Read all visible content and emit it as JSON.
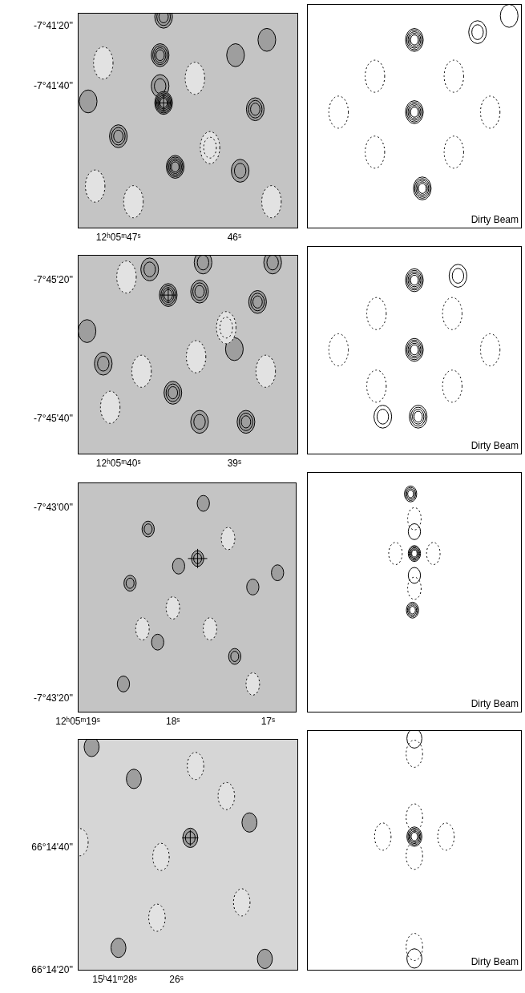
{
  "chart_data": [
    {
      "type": "contour",
      "marker": "cross",
      "xlim": [
        47.35,
        45.45
      ],
      "ylim": [
        -87.4,
        -15.6
      ],
      "xticks": [
        {
          "value": 47,
          "label": "12ʰ05ᵐ47ˢ"
        },
        {
          "value": 46,
          "label": "46ˢ"
        }
      ],
      "yticks": [
        {
          "value": -20,
          "label": "-7°41'20''"
        },
        {
          "value": -40,
          "label": "-7°41'40''"
        }
      ],
      "cross": {
        "x": 46.61,
        "y": -45.6
      },
      "contours": [
        {
          "x": 46.61,
          "y": -16.9,
          "levels": 3
        },
        {
          "x": 46.64,
          "y": -29.7,
          "levels": 4
        },
        {
          "x": 46.64,
          "y": -40.0,
          "levels": 2
        },
        {
          "x": 46.61,
          "y": -45.6,
          "levels": 6
        },
        {
          "x": 47.0,
          "y": -56.7,
          "levels": 3
        },
        {
          "x": 46.51,
          "y": -66.9,
          "levels": 5
        },
        {
          "x": 45.82,
          "y": -47.7,
          "levels": 3
        },
        {
          "x": 45.95,
          "y": -68.2,
          "levels": 2
        },
        {
          "x": 45.99,
          "y": -29.7,
          "levels": 1
        },
        {
          "x": 47.26,
          "y": -45.1,
          "levels": 1
        },
        {
          "x": 45.72,
          "y": -24.6,
          "levels": 1
        },
        {
          "x": 46.34,
          "y": -37.4,
          "levels": -1
        },
        {
          "x": 47.13,
          "y": -32.3,
          "levels": -1
        },
        {
          "x": 46.21,
          "y": -60.5,
          "levels": -2
        },
        {
          "x": 46.87,
          "y": -78.5,
          "levels": -1
        },
        {
          "x": 45.68,
          "y": -78.5,
          "levels": -1
        },
        {
          "x": 47.2,
          "y": -73.3,
          "levels": -1
        }
      ]
    },
    {
      "type": "contour",
      "tick_labels": false,
      "annotations": [
        "Dirty Beam"
      ],
      "xlim": [
        -17,
        17
      ],
      "ylim": [
        -37.2,
        34.6
      ],
      "contours": [
        {
          "x": 0,
          "y": 0,
          "levels": 5
        },
        {
          "x": 0,
          "y": 23.1,
          "levels": 5
        },
        {
          "x": 1.25,
          "y": -24.4,
          "levels": 5
        },
        {
          "x": 10,
          "y": 25.6,
          "levels": 2
        },
        {
          "x": 15,
          "y": 30.8,
          "levels": 1
        },
        {
          "x": -6.25,
          "y": 11.5,
          "levels": -1
        },
        {
          "x": 6.25,
          "y": 11.5,
          "levels": -1
        },
        {
          "x": -6.25,
          "y": -12.8,
          "levels": -1
        },
        {
          "x": 6.25,
          "y": -12.8,
          "levels": -1
        },
        {
          "x": -12,
          "y": 0,
          "levels": -1
        },
        {
          "x": 12,
          "y": 0,
          "levels": -1
        }
      ]
    },
    {
      "type": "contour",
      "marker": "cross",
      "xlim": [
        40.35,
        38.45
      ],
      "ylim": [
        -45.1,
        -16.3
      ],
      "xticks": [
        {
          "value": 40,
          "label": "12ʰ05ᵐ40ˢ"
        },
        {
          "value": 39,
          "label": "39ˢ"
        }
      ],
      "yticks": [
        {
          "value": -20,
          "label": "-7°45'20''"
        },
        {
          "value": -40,
          "label": "-7°45'40''"
        }
      ],
      "cross": {
        "x": 39.57,
        "y": -22.1
      },
      "contours": [
        {
          "x": 39.57,
          "y": -22.1,
          "levels": 4
        },
        {
          "x": 39.73,
          "y": -18.4,
          "levels": 2
        },
        {
          "x": 39.3,
          "y": -21.6,
          "levels": 3
        },
        {
          "x": 38.8,
          "y": -23.1,
          "levels": 3
        },
        {
          "x": 39.53,
          "y": -36.2,
          "levels": 3
        },
        {
          "x": 38.9,
          "y": -40.4,
          "levels": 3
        },
        {
          "x": 39.3,
          "y": -40.4,
          "levels": 2
        },
        {
          "x": 40.13,
          "y": -32.0,
          "levels": 2
        },
        {
          "x": 38.67,
          "y": -17.4,
          "levels": 2
        },
        {
          "x": 40.27,
          "y": -27.3,
          "levels": 1
        },
        {
          "x": 39.27,
          "y": -17.4,
          "levels": 2
        },
        {
          "x": 39.0,
          "y": -29.9,
          "levels": 1
        },
        {
          "x": 39.93,
          "y": -19.5,
          "levels": -1
        },
        {
          "x": 39.07,
          "y": -26.8,
          "levels": -2
        },
        {
          "x": 39.8,
          "y": -33.1,
          "levels": -1
        },
        {
          "x": 40.07,
          "y": -38.3,
          "levels": -1
        },
        {
          "x": 38.73,
          "y": -33.1,
          "levels": -1
        },
        {
          "x": 39.33,
          "y": -31.0,
          "levels": -1
        }
      ]
    },
    {
      "type": "contour",
      "tick_labels": false,
      "annotations": [
        "Dirty Beam"
      ],
      "xlim": [
        -17,
        17
      ],
      "ylim": [
        -14.4,
        14.3
      ],
      "contours": [
        {
          "x": 0,
          "y": 0,
          "levels": 5
        },
        {
          "x": 0,
          "y": 9.6,
          "levels": 5
        },
        {
          "x": 0.6,
          "y": -9.2,
          "levels": 4
        },
        {
          "x": 6.9,
          "y": 10.2,
          "levels": 2
        },
        {
          "x": -5,
          "y": -9.2,
          "levels": 2
        },
        {
          "x": -6,
          "y": 5,
          "levels": -1
        },
        {
          "x": 6,
          "y": 5,
          "levels": -1
        },
        {
          "x": -6,
          "y": -5,
          "levels": -1
        },
        {
          "x": 6,
          "y": -5,
          "levels": -1
        },
        {
          "x": -12,
          "y": 0,
          "levels": -1
        },
        {
          "x": 12,
          "y": 0,
          "levels": -1
        }
      ]
    },
    {
      "type": "contour",
      "marker": "cross",
      "xlim": [
        19.0,
        16.7
      ],
      "ylim": [
        -21.5,
        2.7
      ],
      "xticks": [
        {
          "value": 19,
          "label": "12ʰ05ᵐ19ˢ"
        },
        {
          "value": 18,
          "label": "18ˢ"
        },
        {
          "value": 17,
          "label": "17ˢ"
        }
      ],
      "yticks": [
        {
          "value": 0,
          "label": "-7°43'00''"
        },
        {
          "value": -20,
          "label": "-7°43'20''"
        }
      ],
      "cross": {
        "x": 17.74,
        "y": -5.3
      },
      "contours": [
        {
          "x": 17.74,
          "y": -5.3,
          "levels": 2
        },
        {
          "x": 17.94,
          "y": -6.1,
          "levels": 1
        },
        {
          "x": 18.26,
          "y": -2.2,
          "levels": 2
        },
        {
          "x": 18.45,
          "y": -7.9,
          "levels": 2
        },
        {
          "x": 17.16,
          "y": -8.3,
          "levels": 1
        },
        {
          "x": 17.35,
          "y": -15.6,
          "levels": 2
        },
        {
          "x": 18.16,
          "y": -14.1,
          "levels": 1
        },
        {
          "x": 16.9,
          "y": -6.8,
          "levels": 1
        },
        {
          "x": 17.68,
          "y": 0.5,
          "levels": 1
        },
        {
          "x": 18.52,
          "y": -18.5,
          "levels": 1
        },
        {
          "x": 17.42,
          "y": -3.2,
          "levels": -1
        },
        {
          "x": 18.0,
          "y": -10.5,
          "levels": -1
        },
        {
          "x": 17.16,
          "y": -18.5,
          "levels": -1
        },
        {
          "x": 18.32,
          "y": -12.7,
          "levels": -1
        },
        {
          "x": 17.61,
          "y": -12.7,
          "levels": -1
        }
      ]
    },
    {
      "type": "contour",
      "tick_labels": false,
      "annotations": [
        "Dirty Beam"
      ],
      "xlim": [
        -17,
        17
      ],
      "ylim": [
        -16.0,
        8.2
      ],
      "contours": [
        {
          "x": 0,
          "y": 0,
          "levels": 5
        },
        {
          "x": 0,
          "y": 2.2,
          "levels": 1
        },
        {
          "x": 0,
          "y": -2.2,
          "levels": 1
        },
        {
          "x": -0.6,
          "y": 6.0,
          "levels": 4
        },
        {
          "x": -0.3,
          "y": -5.7,
          "levels": 4
        },
        {
          "x": -3,
          "y": 0,
          "levels": -1
        },
        {
          "x": 3,
          "y": 0,
          "levels": -1
        },
        {
          "x": 0,
          "y": 3.5,
          "levels": -1
        },
        {
          "x": 0,
          "y": -3.5,
          "levels": -1
        }
      ]
    },
    {
      "type": "contour",
      "marker": "cross",
      "xlim": [
        29.2,
        22.05
      ],
      "ylim": [
        20,
        57.7
      ],
      "xticks": [
        {
          "value": 28,
          "label": "15ʰ41ᵐ28ˢ"
        },
        {
          "value": 26,
          "label": "26ˢ"
        }
      ],
      "yticks": [
        {
          "value": 40,
          "label": "66°14'40''"
        },
        {
          "value": 20,
          "label": "66°14'20''"
        }
      ],
      "cross": {
        "x": 25.55,
        "y": 41.6
      },
      "contours": [
        {
          "x": 25.55,
          "y": 41.6,
          "levels": 2
        },
        {
          "x": 23.63,
          "y": 44.1,
          "levels": 1
        },
        {
          "x": 27.38,
          "y": 51.2,
          "levels": 1
        },
        {
          "x": 27.88,
          "y": 23.7,
          "levels": 1
        },
        {
          "x": 23.13,
          "y": 21.9,
          "levels": 1
        },
        {
          "x": 28.75,
          "y": 56.4,
          "levels": 1
        },
        {
          "x": 29.13,
          "y": 40.9,
          "levels": -1
        },
        {
          "x": 26.5,
          "y": 38.5,
          "levels": -1
        },
        {
          "x": 24.38,
          "y": 48.4,
          "levels": -1
        },
        {
          "x": 25.38,
          "y": 53.3,
          "levels": -1
        },
        {
          "x": 26.63,
          "y": 28.6,
          "levels": -1
        },
        {
          "x": 23.88,
          "y": 31.1,
          "levels": -1
        }
      ]
    },
    {
      "type": "contour",
      "tick_labels": false,
      "annotations": [
        "Dirty Beam"
      ],
      "xlim": [
        -17,
        17
      ],
      "ylim": [
        -21.0,
        16.7
      ],
      "contours": [
        {
          "x": 0,
          "y": 0,
          "levels": 5
        },
        {
          "x": -5,
          "y": 0,
          "levels": -1
        },
        {
          "x": 5,
          "y": 0,
          "levels": -1
        },
        {
          "x": 0,
          "y": 3,
          "levels": -1
        },
        {
          "x": 0,
          "y": -3,
          "levels": -1
        },
        {
          "x": 0,
          "y": 15.4,
          "levels": 1
        },
        {
          "x": 0,
          "y": 13.0,
          "levels": -1
        },
        {
          "x": 0,
          "y": -19.1,
          "levels": 1
        },
        {
          "x": 0,
          "y": -17.3,
          "levels": -1
        }
      ]
    }
  ]
}
